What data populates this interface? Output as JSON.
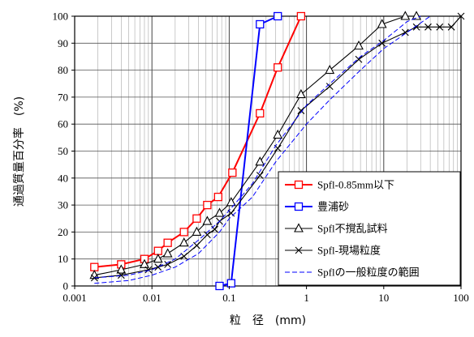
{
  "chart_data": {
    "type": "line",
    "xlabel": "粒　径　(mm)",
    "ylabel": "通過質量百分率　(%)",
    "x_scale": "log",
    "xlim": [
      0.001,
      100
    ],
    "ylim": [
      0,
      100
    ],
    "x_ticks": [
      "0.001",
      "0.01",
      "0.1",
      "1",
      "10",
      "100"
    ],
    "y_ticks": [
      "0",
      "10",
      "20",
      "30",
      "40",
      "50",
      "60",
      "70",
      "80",
      "90",
      "100"
    ],
    "grid": true,
    "legend_position": "bottom-right",
    "series": [
      {
        "name": "Spfl-0.85mm以下",
        "color": "#ff0000",
        "marker": "square",
        "line": "solid",
        "x": [
          0.0018,
          0.004,
          0.008,
          0.012,
          0.016,
          0.026,
          0.038,
          0.052,
          0.072,
          0.11,
          0.25,
          0.425,
          0.85
        ],
        "y": [
          7,
          8,
          10,
          13,
          16,
          20,
          25,
          30,
          33,
          42,
          64,
          81,
          100
        ]
      },
      {
        "name": "豊浦砂",
        "color": "#0000ff",
        "marker": "square",
        "line": "solid",
        "x": [
          0.075,
          0.106,
          0.25,
          0.425
        ],
        "y": [
          0,
          1,
          97,
          100
        ]
      },
      {
        "name": "Spfl不撹乱試料",
        "color": "#000000",
        "marker": "triangle",
        "line": "solid",
        "x": [
          0.0018,
          0.004,
          0.008,
          0.012,
          0.016,
          0.026,
          0.038,
          0.052,
          0.075,
          0.106,
          0.25,
          0.425,
          0.85,
          2,
          4.75,
          9.5,
          19,
          26.5
        ],
        "y": [
          4,
          6,
          8,
          10,
          12,
          16,
          20,
          24,
          27,
          31,
          46,
          56,
          71,
          80,
          89,
          97,
          100,
          100
        ]
      },
      {
        "name": "Spfl-現場粒度",
        "color": "#000000",
        "marker": "x",
        "line": "solid",
        "x": [
          0.0018,
          0.004,
          0.009,
          0.012,
          0.016,
          0.026,
          0.038,
          0.052,
          0.065,
          0.075,
          0.106,
          0.25,
          0.425,
          0.85,
          2,
          4.75,
          9.5,
          19,
          26.5,
          37.5,
          53,
          75,
          100
        ],
        "y": [
          3,
          4,
          6,
          7,
          8,
          11,
          15,
          19,
          21,
          24,
          27,
          41,
          51,
          65,
          74,
          84,
          90,
          94,
          96,
          96,
          96,
          96,
          100
        ]
      },
      {
        "name": "Spflの一般粒度の範囲",
        "color": "#0000ff",
        "marker": "none",
        "line": "dashed",
        "x": [
          0.0018,
          0.005,
          0.01,
          0.02,
          0.04,
          0.075,
          0.1,
          0.2,
          0.4,
          1,
          2,
          5,
          10,
          20,
          30
        ],
        "y": [
          3,
          4,
          6,
          10,
          17,
          24,
          28,
          38,
          52,
          67,
          75,
          85,
          91,
          98,
          100
        ]
      },
      {
        "name": "Spflの一般粒度の範囲",
        "color": "#0000ff",
        "marker": "none",
        "line": "dashed",
        "x": [
          0.0018,
          0.005,
          0.01,
          0.02,
          0.04,
          0.075,
          0.1,
          0.2,
          0.4,
          1,
          2,
          5,
          10,
          20,
          40
        ],
        "y": [
          1,
          2,
          4,
          7,
          12,
          20,
          25,
          33,
          46,
          60,
          69,
          80,
          88,
          94,
          100
        ]
      }
    ]
  }
}
